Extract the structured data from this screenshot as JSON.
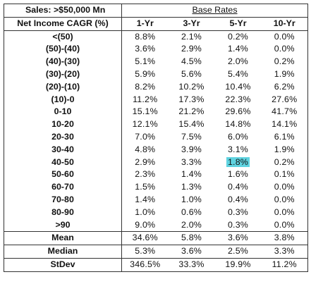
{
  "title": "Sales: >$50,000 Mn",
  "group_header": "Base Rates",
  "row_header": "Net Income CAGR (%)",
  "columns": [
    "1-Yr",
    "3-Yr",
    "5-Yr",
    "10-Yr"
  ],
  "rows": [
    {
      "label": "<(50)",
      "values": [
        "8.8%",
        "2.1%",
        "0.2%",
        "0.0%"
      ]
    },
    {
      "label": "(50)-(40)",
      "values": [
        "3.6%",
        "2.9%",
        "1.4%",
        "0.0%"
      ]
    },
    {
      "label": "(40)-(30)",
      "values": [
        "5.1%",
        "4.5%",
        "2.0%",
        "0.2%"
      ]
    },
    {
      "label": "(30)-(20)",
      "values": [
        "5.9%",
        "5.6%",
        "5.4%",
        "1.9%"
      ]
    },
    {
      "label": "(20)-(10)",
      "values": [
        "8.2%",
        "10.2%",
        "10.4%",
        "6.2%"
      ]
    },
    {
      "label": "(10)-0",
      "values": [
        "11.2%",
        "17.3%",
        "22.3%",
        "27.6%"
      ]
    },
    {
      "label": "0-10",
      "values": [
        "15.1%",
        "21.2%",
        "29.6%",
        "41.7%"
      ]
    },
    {
      "label": "10-20",
      "values": [
        "12.1%",
        "15.4%",
        "14.8%",
        "14.1%"
      ]
    },
    {
      "label": "20-30",
      "values": [
        "7.0%",
        "7.5%",
        "6.0%",
        "6.1%"
      ]
    },
    {
      "label": "30-40",
      "values": [
        "4.8%",
        "3.9%",
        "3.1%",
        "1.9%"
      ]
    },
    {
      "label": "40-50",
      "values": [
        "2.9%",
        "3.3%",
        "1.8%",
        "0.2%"
      ]
    },
    {
      "label": "50-60",
      "values": [
        "2.3%",
        "1.4%",
        "1.6%",
        "0.1%"
      ]
    },
    {
      "label": "60-70",
      "values": [
        "1.5%",
        "1.3%",
        "0.4%",
        "0.0%"
      ]
    },
    {
      "label": "70-80",
      "values": [
        "1.4%",
        "1.0%",
        "0.4%",
        "0.0%"
      ]
    },
    {
      "label": "80-90",
      "values": [
        "1.0%",
        "0.6%",
        "0.3%",
        "0.0%"
      ]
    },
    {
      "label": ">90",
      "values": [
        "9.0%",
        "2.0%",
        "0.3%",
        "0.0%"
      ]
    }
  ],
  "stats": [
    {
      "label": "Mean",
      "values": [
        "34.6%",
        "5.8%",
        "3.6%",
        "3.8%"
      ]
    },
    {
      "label": "Median",
      "values": [
        "5.3%",
        "3.6%",
        "2.5%",
        "3.3%"
      ]
    },
    {
      "label": "StDev",
      "values": [
        "346.5%",
        "33.3%",
        "19.9%",
        "11.2%"
      ]
    }
  ],
  "highlight": {
    "row": 10,
    "col": 2,
    "color": "#5fd3e0"
  }
}
